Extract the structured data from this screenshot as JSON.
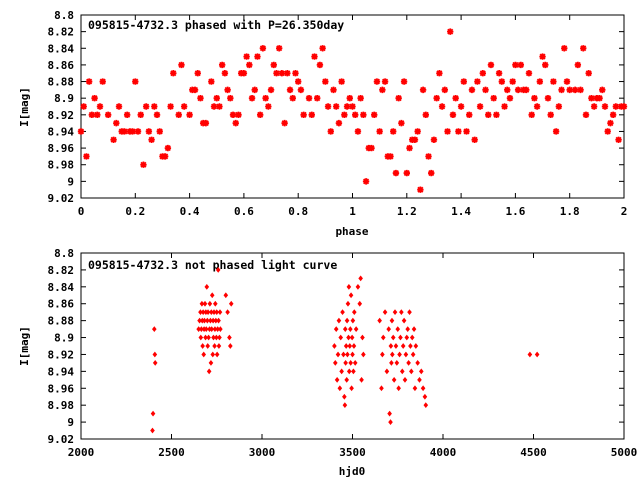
{
  "chart_data": [
    {
      "type": "scatter",
      "title": "095815-4732.3 phased with P=26.350day",
      "xlabel": "phase",
      "ylabel": "I[mag]",
      "xlim": [
        0,
        2
      ],
      "ylim": [
        9.02,
        8.8
      ],
      "y_inverted": true,
      "grid": false,
      "marker": "star",
      "color": "#ff0000",
      "x_ticks": [
        "0",
        "0.2",
        "0.4",
        "0.6",
        "0.8",
        "1",
        "1.2",
        "1.4",
        "1.6",
        "1.8",
        "2"
      ],
      "y_ticks": [
        "8.8",
        "8.82",
        "8.84",
        "8.86",
        "8.88",
        "8.9",
        "8.92",
        "8.94",
        "8.96",
        "8.98",
        "9",
        "9.02"
      ],
      "points": [
        [
          0.0,
          8.94
        ],
        [
          0.01,
          8.91
        ],
        [
          0.02,
          8.97
        ],
        [
          0.03,
          8.88
        ],
        [
          0.04,
          8.92
        ],
        [
          0.05,
          8.9
        ],
        [
          0.06,
          8.92
        ],
        [
          0.07,
          8.91
        ],
        [
          0.08,
          8.88
        ],
        [
          0.1,
          8.92
        ],
        [
          0.12,
          8.95
        ],
        [
          0.13,
          8.93
        ],
        [
          0.14,
          8.91
        ],
        [
          0.15,
          8.94
        ],
        [
          0.16,
          8.94
        ],
        [
          0.17,
          8.92
        ],
        [
          0.18,
          8.94
        ],
        [
          0.19,
          8.94
        ],
        [
          0.2,
          8.88
        ],
        [
          0.21,
          8.94
        ],
        [
          0.22,
          8.92
        ],
        [
          0.23,
          8.98
        ],
        [
          0.24,
          8.91
        ],
        [
          0.25,
          8.94
        ],
        [
          0.26,
          8.95
        ],
        [
          0.27,
          8.91
        ],
        [
          0.28,
          8.92
        ],
        [
          0.29,
          8.94
        ],
        [
          0.3,
          8.97
        ],
        [
          0.31,
          8.97
        ],
        [
          0.32,
          8.96
        ],
        [
          0.33,
          8.91
        ],
        [
          0.34,
          8.87
        ],
        [
          0.36,
          8.92
        ],
        [
          0.37,
          8.86
        ],
        [
          0.38,
          8.91
        ],
        [
          0.4,
          8.92
        ],
        [
          0.41,
          8.89
        ],
        [
          0.42,
          8.89
        ],
        [
          0.43,
          8.87
        ],
        [
          0.44,
          8.9
        ],
        [
          0.45,
          8.93
        ],
        [
          0.46,
          8.93
        ],
        [
          0.48,
          8.88
        ],
        [
          0.49,
          8.91
        ],
        [
          0.5,
          8.9
        ],
        [
          0.51,
          8.91
        ],
        [
          0.52,
          8.86
        ],
        [
          0.53,
          8.87
        ],
        [
          0.54,
          8.89
        ],
        [
          0.55,
          8.9
        ],
        [
          0.56,
          8.92
        ],
        [
          0.57,
          8.93
        ],
        [
          0.58,
          8.92
        ],
        [
          0.59,
          8.87
        ],
        [
          0.6,
          8.87
        ],
        [
          0.61,
          8.85
        ],
        [
          0.62,
          8.86
        ],
        [
          0.63,
          8.9
        ],
        [
          0.64,
          8.89
        ],
        [
          0.65,
          8.85
        ],
        [
          0.66,
          8.92
        ],
        [
          0.67,
          8.84
        ],
        [
          0.68,
          8.9
        ],
        [
          0.69,
          8.91
        ],
        [
          0.7,
          8.89
        ],
        [
          0.71,
          8.86
        ],
        [
          0.72,
          8.87
        ],
        [
          0.73,
          8.84
        ],
        [
          0.74,
          8.87
        ],
        [
          0.75,
          8.93
        ],
        [
          0.76,
          8.87
        ],
        [
          0.77,
          8.89
        ],
        [
          0.78,
          8.9
        ],
        [
          0.79,
          8.87
        ],
        [
          0.8,
          8.88
        ],
        [
          0.81,
          8.89
        ],
        [
          0.82,
          8.92
        ],
        [
          0.84,
          8.9
        ],
        [
          0.85,
          8.92
        ],
        [
          0.86,
          8.85
        ],
        [
          0.87,
          8.9
        ],
        [
          0.88,
          8.86
        ],
        [
          0.89,
          8.84
        ],
        [
          0.9,
          8.88
        ],
        [
          0.91,
          8.91
        ],
        [
          0.92,
          8.94
        ],
        [
          0.93,
          8.89
        ],
        [
          0.94,
          8.91
        ],
        [
          0.95,
          8.93
        ],
        [
          0.96,
          8.88
        ],
        [
          0.97,
          8.92
        ],
        [
          0.98,
          8.91
        ],
        [
          0.99,
          8.9
        ],
        [
          1.0,
          8.91
        ],
        [
          1.01,
          8.92
        ],
        [
          1.02,
          8.94
        ],
        [
          1.03,
          8.9
        ],
        [
          1.04,
          8.92
        ],
        [
          1.05,
          9.0
        ],
        [
          1.06,
          8.96
        ],
        [
          1.07,
          8.96
        ],
        [
          1.08,
          8.92
        ],
        [
          1.09,
          8.88
        ],
        [
          1.1,
          8.94
        ],
        [
          1.11,
          8.89
        ],
        [
          1.12,
          8.88
        ],
        [
          1.13,
          8.97
        ],
        [
          1.14,
          8.97
        ],
        [
          1.15,
          8.94
        ],
        [
          1.16,
          8.99
        ],
        [
          1.17,
          8.9
        ],
        [
          1.18,
          8.93
        ],
        [
          1.19,
          8.88
        ],
        [
          1.2,
          8.99
        ],
        [
          1.21,
          8.96
        ],
        [
          1.22,
          8.95
        ],
        [
          1.23,
          8.95
        ],
        [
          1.24,
          8.94
        ],
        [
          1.25,
          9.01
        ],
        [
          1.26,
          8.89
        ],
        [
          1.27,
          8.92
        ],
        [
          1.28,
          8.97
        ],
        [
          1.29,
          8.99
        ],
        [
          1.3,
          8.95
        ],
        [
          1.31,
          8.9
        ],
        [
          1.32,
          8.87
        ],
        [
          1.33,
          8.91
        ],
        [
          1.34,
          8.89
        ],
        [
          1.35,
          8.94
        ],
        [
          1.36,
          8.82
        ],
        [
          1.37,
          8.92
        ],
        [
          1.38,
          8.9
        ],
        [
          1.39,
          8.94
        ],
        [
          1.4,
          8.91
        ],
        [
          1.41,
          8.88
        ],
        [
          1.42,
          8.94
        ],
        [
          1.43,
          8.92
        ],
        [
          1.44,
          8.89
        ],
        [
          1.45,
          8.95
        ],
        [
          1.46,
          8.88
        ],
        [
          1.47,
          8.91
        ],
        [
          1.48,
          8.87
        ],
        [
          1.49,
          8.89
        ],
        [
          1.5,
          8.92
        ],
        [
          1.51,
          8.86
        ],
        [
          1.52,
          8.9
        ],
        [
          1.53,
          8.92
        ],
        [
          1.54,
          8.87
        ],
        [
          1.55,
          8.88
        ],
        [
          1.56,
          8.91
        ],
        [
          1.57,
          8.89
        ],
        [
          1.58,
          8.9
        ],
        [
          1.59,
          8.88
        ],
        [
          1.6,
          8.86
        ],
        [
          1.61,
          8.89
        ],
        [
          1.62,
          8.86
        ],
        [
          1.63,
          8.89
        ],
        [
          1.64,
          8.89
        ],
        [
          1.65,
          8.87
        ],
        [
          1.66,
          8.92
        ],
        [
          1.67,
          8.9
        ],
        [
          1.68,
          8.91
        ],
        [
          1.69,
          8.88
        ],
        [
          1.7,
          8.85
        ],
        [
          1.71,
          8.86
        ],
        [
          1.72,
          8.9
        ],
        [
          1.73,
          8.92
        ],
        [
          1.74,
          8.88
        ],
        [
          1.75,
          8.94
        ],
        [
          1.76,
          8.91
        ],
        [
          1.77,
          8.89
        ],
        [
          1.78,
          8.84
        ],
        [
          1.79,
          8.88
        ],
        [
          1.8,
          8.89
        ],
        [
          1.82,
          8.89
        ],
        [
          1.83,
          8.86
        ],
        [
          1.84,
          8.89
        ],
        [
          1.85,
          8.84
        ],
        [
          1.86,
          8.92
        ],
        [
          1.87,
          8.87
        ],
        [
          1.88,
          8.9
        ],
        [
          1.89,
          8.91
        ],
        [
          1.9,
          8.9
        ],
        [
          1.91,
          8.9
        ],
        [
          1.92,
          8.89
        ],
        [
          1.93,
          8.91
        ],
        [
          1.94,
          8.94
        ],
        [
          1.95,
          8.93
        ],
        [
          1.96,
          8.92
        ],
        [
          1.97,
          8.91
        ],
        [
          1.98,
          8.95
        ],
        [
          1.99,
          8.91
        ],
        [
          2.0,
          8.91
        ]
      ]
    },
    {
      "type": "scatter",
      "title": "095815-4732.3 not phased light curve",
      "xlabel": "hjd0",
      "ylabel": "I[mag]",
      "xlim": [
        2000,
        5000
      ],
      "ylim": [
        9.02,
        8.8
      ],
      "y_inverted": true,
      "grid": false,
      "marker": "diamond",
      "color": "#ff0000",
      "x_ticks": [
        "2000",
        "2500",
        "3000",
        "3500",
        "4000",
        "4500",
        "5000"
      ],
      "y_ticks": [
        "8.8",
        "8.82",
        "8.84",
        "8.86",
        "8.88",
        "8.9",
        "8.92",
        "8.94",
        "8.96",
        "8.98",
        "9",
        "9.02"
      ],
      "points": [
        [
          2395,
          9.01
        ],
        [
          2398,
          8.99
        ],
        [
          2405,
          8.89
        ],
        [
          2408,
          8.92
        ],
        [
          2410,
          8.93
        ],
        [
          2650,
          8.89
        ],
        [
          2655,
          8.88
        ],
        [
          2660,
          8.87
        ],
        [
          2662,
          8.9
        ],
        [
          2665,
          8.89
        ],
        [
          2668,
          8.86
        ],
        [
          2670,
          8.88
        ],
        [
          2672,
          8.91
        ],
        [
          2675,
          8.87
        ],
        [
          2678,
          8.92
        ],
        [
          2680,
          8.89
        ],
        [
          2682,
          8.88
        ],
        [
          2685,
          8.86
        ],
        [
          2688,
          8.9
        ],
        [
          2690,
          8.87
        ],
        [
          2692,
          8.89
        ],
        [
          2695,
          8.84
        ],
        [
          2698,
          8.88
        ],
        [
          2700,
          8.91
        ],
        [
          2702,
          8.87
        ],
        [
          2705,
          8.9
        ],
        [
          2708,
          8.94
        ],
        [
          2710,
          8.89
        ],
        [
          2712,
          8.86
        ],
        [
          2715,
          8.88
        ],
        [
          2718,
          8.93
        ],
        [
          2720,
          8.87
        ],
        [
          2722,
          8.89
        ],
        [
          2725,
          8.85
        ],
        [
          2728,
          8.92
        ],
        [
          2730,
          8.88
        ],
        [
          2732,
          8.9
        ],
        [
          2735,
          8.87
        ],
        [
          2738,
          8.91
        ],
        [
          2740,
          8.89
        ],
        [
          2742,
          8.86
        ],
        [
          2745,
          8.88
        ],
        [
          2748,
          8.9
        ],
        [
          2750,
          8.87
        ],
        [
          2752,
          8.92
        ],
        [
          2755,
          8.89
        ],
        [
          2758,
          8.82
        ],
        [
          2760,
          8.88
        ],
        [
          2762,
          8.91
        ],
        [
          2765,
          8.9
        ],
        [
          2768,
          8.87
        ],
        [
          2770,
          8.89
        ],
        [
          2800,
          8.85
        ],
        [
          2810,
          8.87
        ],
        [
          2820,
          8.9
        ],
        [
          2825,
          8.91
        ],
        [
          2830,
          8.86
        ],
        [
          3400,
          8.91
        ],
        [
          3405,
          8.93
        ],
        [
          3410,
          8.89
        ],
        [
          3415,
          8.95
        ],
        [
          3420,
          8.92
        ],
        [
          3425,
          8.88
        ],
        [
          3430,
          8.96
        ],
        [
          3435,
          8.9
        ],
        [
          3440,
          8.94
        ],
        [
          3445,
          8.87
        ],
        [
          3450,
          8.92
        ],
        [
          3455,
          8.97
        ],
        [
          3458,
          8.98
        ],
        [
          3460,
          8.89
        ],
        [
          3462,
          8.93
        ],
        [
          3465,
          8.91
        ],
        [
          3468,
          8.95
        ],
        [
          3470,
          8.88
        ],
        [
          3472,
          8.92
        ],
        [
          3475,
          8.86
        ],
        [
          3478,
          8.9
        ],
        [
          3480,
          8.84
        ],
        [
          3482,
          8.94
        ],
        [
          3485,
          8.91
        ],
        [
          3488,
          8.89
        ],
        [
          3490,
          8.93
        ],
        [
          3492,
          8.85
        ],
        [
          3495,
          8.96
        ],
        [
          3498,
          8.9
        ],
        [
          3500,
          8.92
        ],
        [
          3502,
          8.88
        ],
        [
          3505,
          8.94
        ],
        [
          3508,
          8.91
        ],
        [
          3510,
          8.87
        ],
        [
          3515,
          8.93
        ],
        [
          3520,
          8.89
        ],
        [
          3530,
          8.84
        ],
        [
          3540,
          8.86
        ],
        [
          3545,
          8.83
        ],
        [
          3550,
          8.95
        ],
        [
          3555,
          8.9
        ],
        [
          3560,
          8.92
        ],
        [
          3650,
          8.88
        ],
        [
          3660,
          8.96
        ],
        [
          3665,
          8.92
        ],
        [
          3670,
          8.9
        ],
        [
          3680,
          8.87
        ],
        [
          3690,
          8.94
        ],
        [
          3700,
          8.89
        ],
        [
          3705,
          8.99
        ],
        [
          3710,
          9.0
        ],
        [
          3712,
          8.91
        ],
        [
          3715,
          8.93
        ],
        [
          3718,
          8.88
        ],
        [
          3720,
          8.92
        ],
        [
          3725,
          8.9
        ],
        [
          3730,
          8.95
        ],
        [
          3735,
          8.87
        ],
        [
          3740,
          8.91
        ],
        [
          3745,
          8.93
        ],
        [
          3750,
          8.89
        ],
        [
          3755,
          8.96
        ],
        [
          3760,
          8.92
        ],
        [
          3765,
          8.9
        ],
        [
          3770,
          8.87
        ],
        [
          3775,
          8.94
        ],
        [
          3780,
          8.91
        ],
        [
          3785,
          8.88
        ],
        [
          3790,
          8.95
        ],
        [
          3795,
          8.92
        ],
        [
          3800,
          8.9
        ],
        [
          3805,
          8.89
        ],
        [
          3810,
          8.93
        ],
        [
          3815,
          8.87
        ],
        [
          3820,
          8.91
        ],
        [
          3825,
          8.94
        ],
        [
          3830,
          8.9
        ],
        [
          3835,
          8.92
        ],
        [
          3840,
          8.89
        ],
        [
          3845,
          8.96
        ],
        [
          3850,
          8.91
        ],
        [
          3860,
          8.93
        ],
        [
          3870,
          8.95
        ],
        [
          3880,
          8.94
        ],
        [
          3890,
          8.96
        ],
        [
          3900,
          8.97
        ],
        [
          3905,
          8.98
        ],
        [
          4480,
          8.92
        ],
        [
          4520,
          8.92
        ]
      ]
    }
  ]
}
